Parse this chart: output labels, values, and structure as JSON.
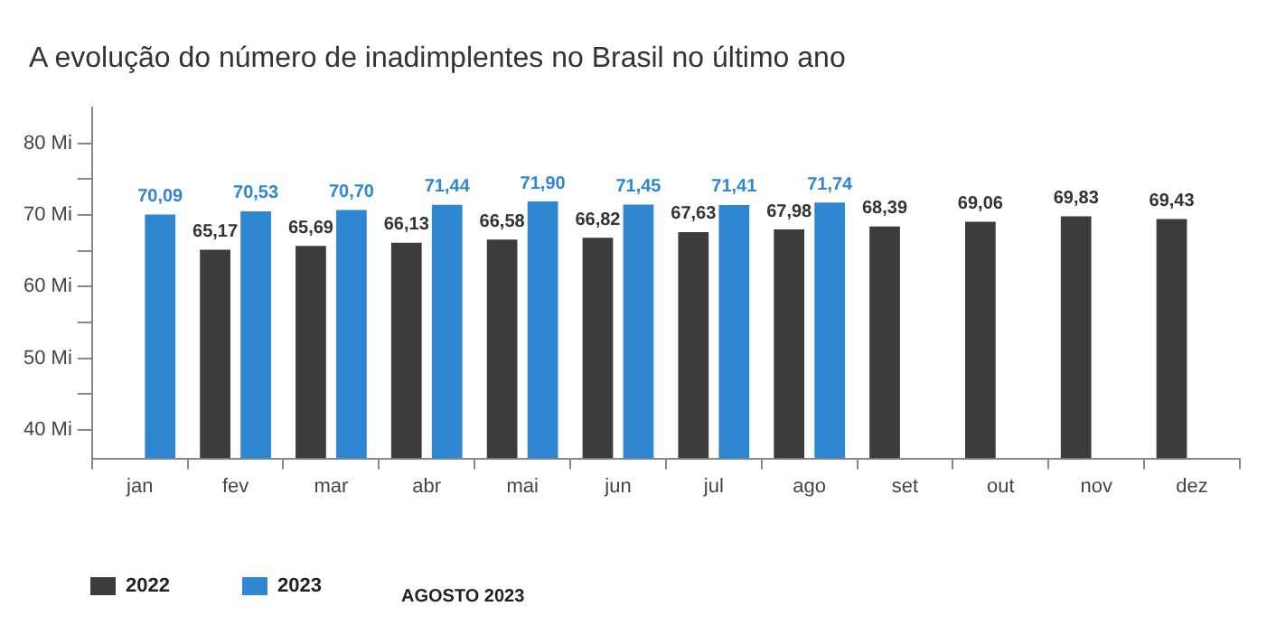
{
  "chart_data": {
    "type": "bar",
    "title": "A evolução do número de inadimplentes no Brasil no último ano",
    "categories": [
      "jan",
      "fev",
      "mar",
      "abr",
      "mai",
      "jun",
      "jul",
      "ago",
      "set",
      "out",
      "nov",
      "dez"
    ],
    "series": [
      {
        "name": "2022",
        "color": "#3c3c3c",
        "values": [
          null,
          65.17,
          65.69,
          66.13,
          66.58,
          66.82,
          67.63,
          67.98,
          68.39,
          69.06,
          69.83,
          69.43
        ],
        "value_labels": [
          null,
          "65,17",
          "65,69",
          "66,13",
          "66,58",
          "66,82",
          "67,63",
          "67,98",
          "68,39",
          "69,06",
          "69,83",
          "69,43"
        ]
      },
      {
        "name": "2023",
        "color": "#2f86d1",
        "values": [
          70.09,
          70.53,
          70.7,
          71.44,
          71.9,
          71.45,
          71.41,
          71.74,
          null,
          null,
          null,
          null
        ],
        "value_labels": [
          "70,09",
          "70,53",
          "70,70",
          "71,44",
          "71,90",
          "71,45",
          "71,41",
          "71,74",
          null,
          null,
          null,
          null
        ]
      }
    ],
    "ylim": [
      36,
      85
    ],
    "yticks": [
      {
        "value": 40,
        "label": "40 Mi"
      },
      {
        "value": 45,
        "label": null
      },
      {
        "value": 50,
        "label": "50 Mi"
      },
      {
        "value": 55,
        "label": null
      },
      {
        "value": 60,
        "label": "60 Mi"
      },
      {
        "value": 65,
        "label": null
      },
      {
        "value": 70,
        "label": "70 Mi"
      },
      {
        "value": 75,
        "label": null
      },
      {
        "value": 80,
        "label": "80 Mi"
      }
    ],
    "grid": false,
    "legend": "bottom left",
    "annotations": [
      "AGOSTO 2023"
    ]
  }
}
